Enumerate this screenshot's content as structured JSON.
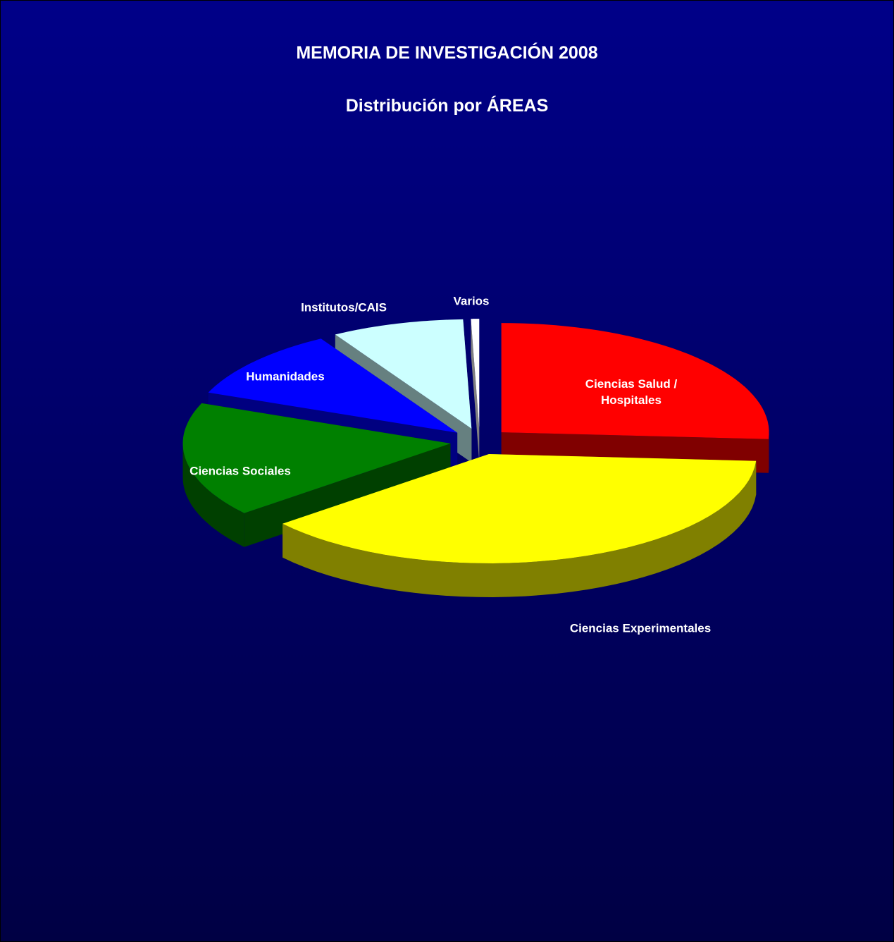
{
  "chart_data": {
    "type": "pie3d",
    "title": "MEMORIA DE INVESTIGACIÓN 2008",
    "subtitle": "Distribución por ÁREAS",
    "categories": [
      "Ciencias Salud / Hospitales",
      "Ciencias Experimentales",
      "Ciencias Sociales",
      "Humanidades",
      "Institutos/CAIS",
      "Varios"
    ],
    "values": [
      26,
      38,
      17,
      10.5,
      8,
      0.5
    ],
    "colors": [
      "#ff0000",
      "#ffff00",
      "#008000",
      "#0000ff",
      "#ccffff",
      "#ffffff"
    ]
  }
}
